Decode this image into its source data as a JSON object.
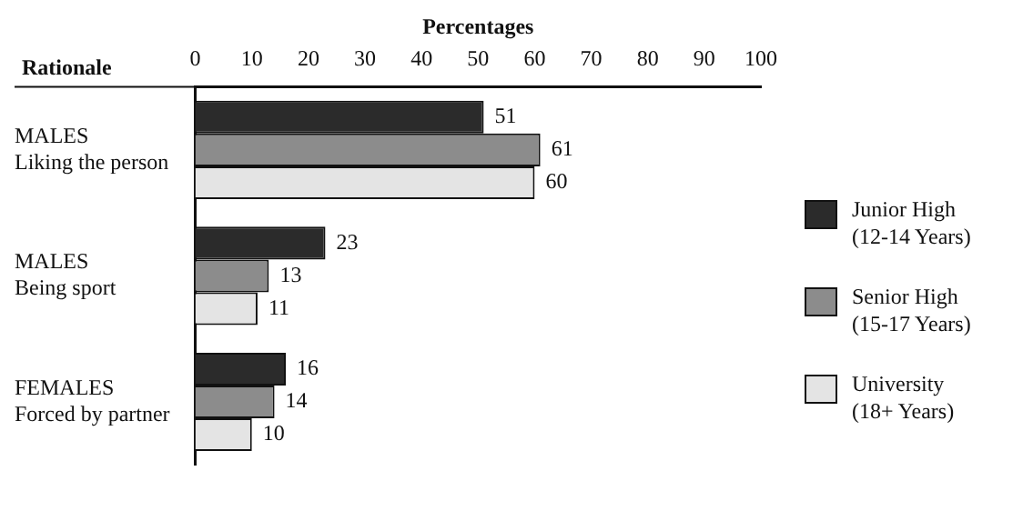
{
  "chart_data": {
    "type": "bar",
    "orientation": "horizontal",
    "xlabel": "Percentages",
    "ylabel": "Rationale",
    "categories": [
      "MALES\nLiking the person",
      "MALES\nBeing sport",
      "FEMALES\nForced by partner"
    ],
    "series": [
      {
        "name": "Junior High\n(12-14 Years)",
        "color": "#2b2b2b",
        "values": [
          51,
          23,
          16
        ]
      },
      {
        "name": "Senior High\n(15-17 Years)",
        "color": "#8c8c8c",
        "values": [
          61,
          13,
          14
        ]
      },
      {
        "name": "University\n(18+ Years)",
        "color": "#e4e4e4",
        "values": [
          60,
          11,
          10
        ]
      }
    ],
    "xlim": [
      0,
      100
    ],
    "xticks": [
      0,
      10,
      20,
      30,
      40,
      50,
      60,
      70,
      80,
      90,
      100
    ],
    "grid": false,
    "legend": "right",
    "data_labels": true
  }
}
